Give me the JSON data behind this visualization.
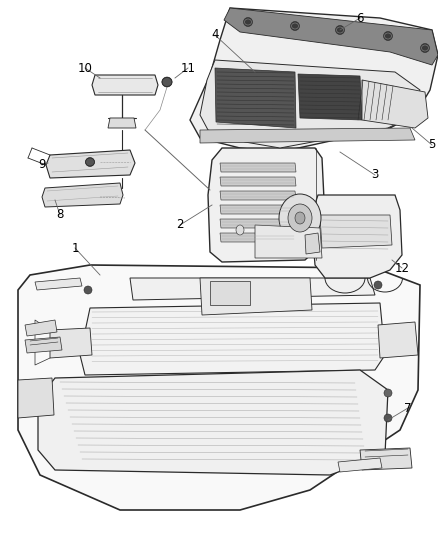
{
  "background_color": "#ffffff",
  "line_color": "#2a2a2a",
  "label_color": "#000000",
  "label_fontsize": 8.5,
  "figsize": [
    4.38,
    5.33
  ],
  "dpi": 100
}
